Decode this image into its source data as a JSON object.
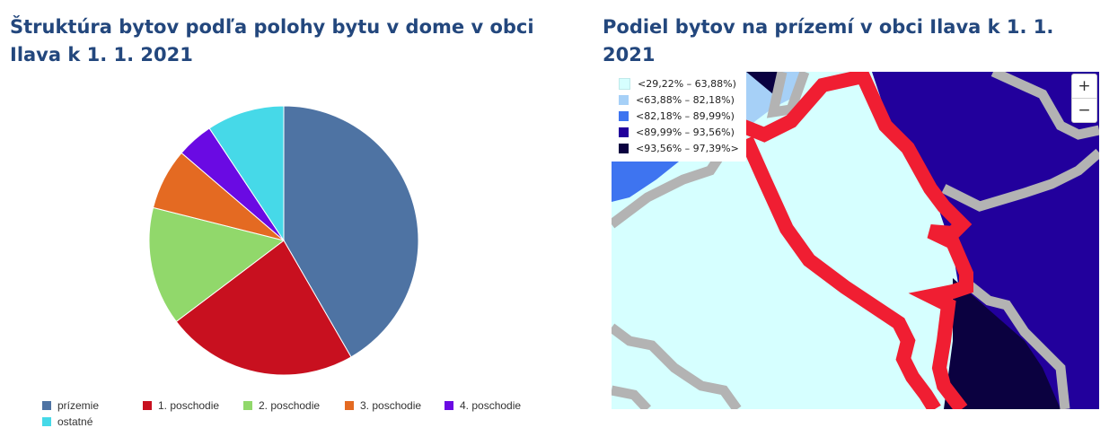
{
  "left_title": "Štruktúra bytov podľa polohy bytu v dome v obci Ilava k 1. 1. 2021",
  "right_title": "Podiel bytov na prízemí v obci Ilava k 1. 1. 2021",
  "chart_data": {
    "type": "pie",
    "title": "Štruktúra bytov podľa polohy bytu v dome v obci Ilava k 1. 1. 2021",
    "start_angle_deg": 0,
    "direction": "clockwise",
    "legend_position": "bottom",
    "slices": [
      {
        "label": "prízemie",
        "value": 42.5,
        "color": "#4e73a3"
      },
      {
        "label": "1. poschodie",
        "value": 23.5,
        "color": "#c8101f"
      },
      {
        "label": "2. poschodie",
        "value": 14.5,
        "color": "#91d86b"
      },
      {
        "label": "3. poschodie",
        "value": 7.5,
        "color": "#e46a22"
      },
      {
        "label": "4. poschodie",
        "value": 4.5,
        "color": "#6a0ae3"
      },
      {
        "label": "ostatné",
        "value": 9.5,
        "color": "#46d9e8"
      }
    ]
  },
  "map": {
    "legend": [
      {
        "label": "<29,22% – 63,88%)",
        "color": "#d6ffff"
      },
      {
        "label": "<63,88% – 82,18%)",
        "color": "#a6d0f7"
      },
      {
        "label": "<82,18% – 89,99%)",
        "color": "#3e74f0"
      },
      {
        "label": "<89,99% – 93,56%)",
        "color": "#22009c"
      },
      {
        "label": "<93,56% – 97,39%>",
        "color": "#0b0140"
      }
    ],
    "zoom_in": "+",
    "zoom_out": "−"
  }
}
